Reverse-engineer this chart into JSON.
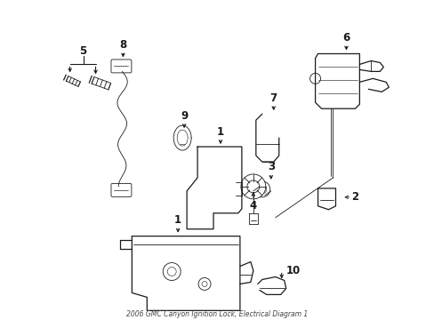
{
  "background_color": "#ffffff",
  "line_color": "#1a1a1a",
  "fig_width": 4.89,
  "fig_height": 3.6,
  "dpi": 100,
  "title": "2006 GMC Canyon Ignition Lock, Electrical Diagram 1",
  "title_fontsize": 5.5,
  "label_fontsize": 8.5,
  "lw": 0.9,
  "tlw": 0.6
}
